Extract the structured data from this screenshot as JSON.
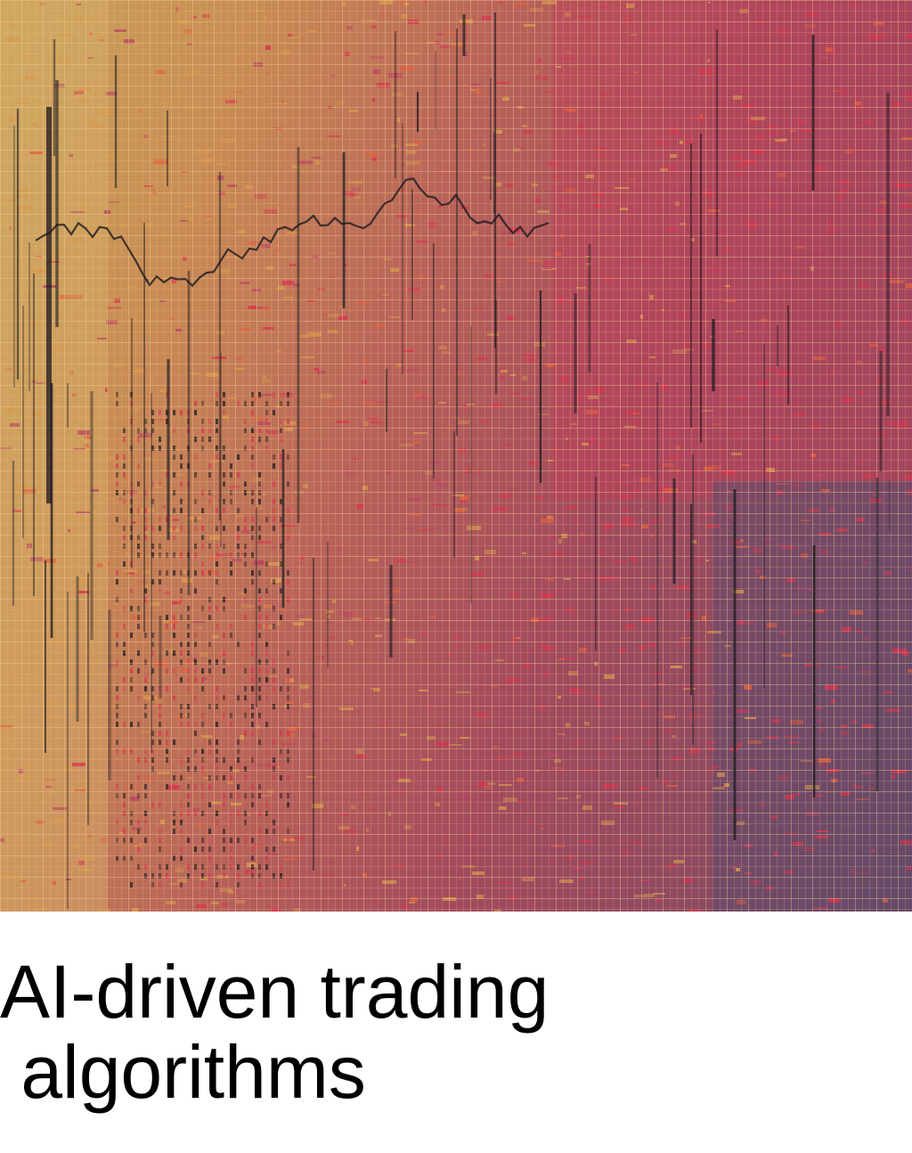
{
  "image": {
    "subject": "abstract-trading-grid-artwork",
    "palette": {
      "gold": "#c9a45a",
      "amber": "#d79a4e",
      "coral": "#e0603f",
      "crimson": "#d8344e",
      "magenta": "#b94463",
      "plum": "#6f4a68",
      "dark": "#1c1a1f"
    }
  },
  "caption": {
    "line1": "AI-driven trading",
    "line2": " algorithms"
  }
}
